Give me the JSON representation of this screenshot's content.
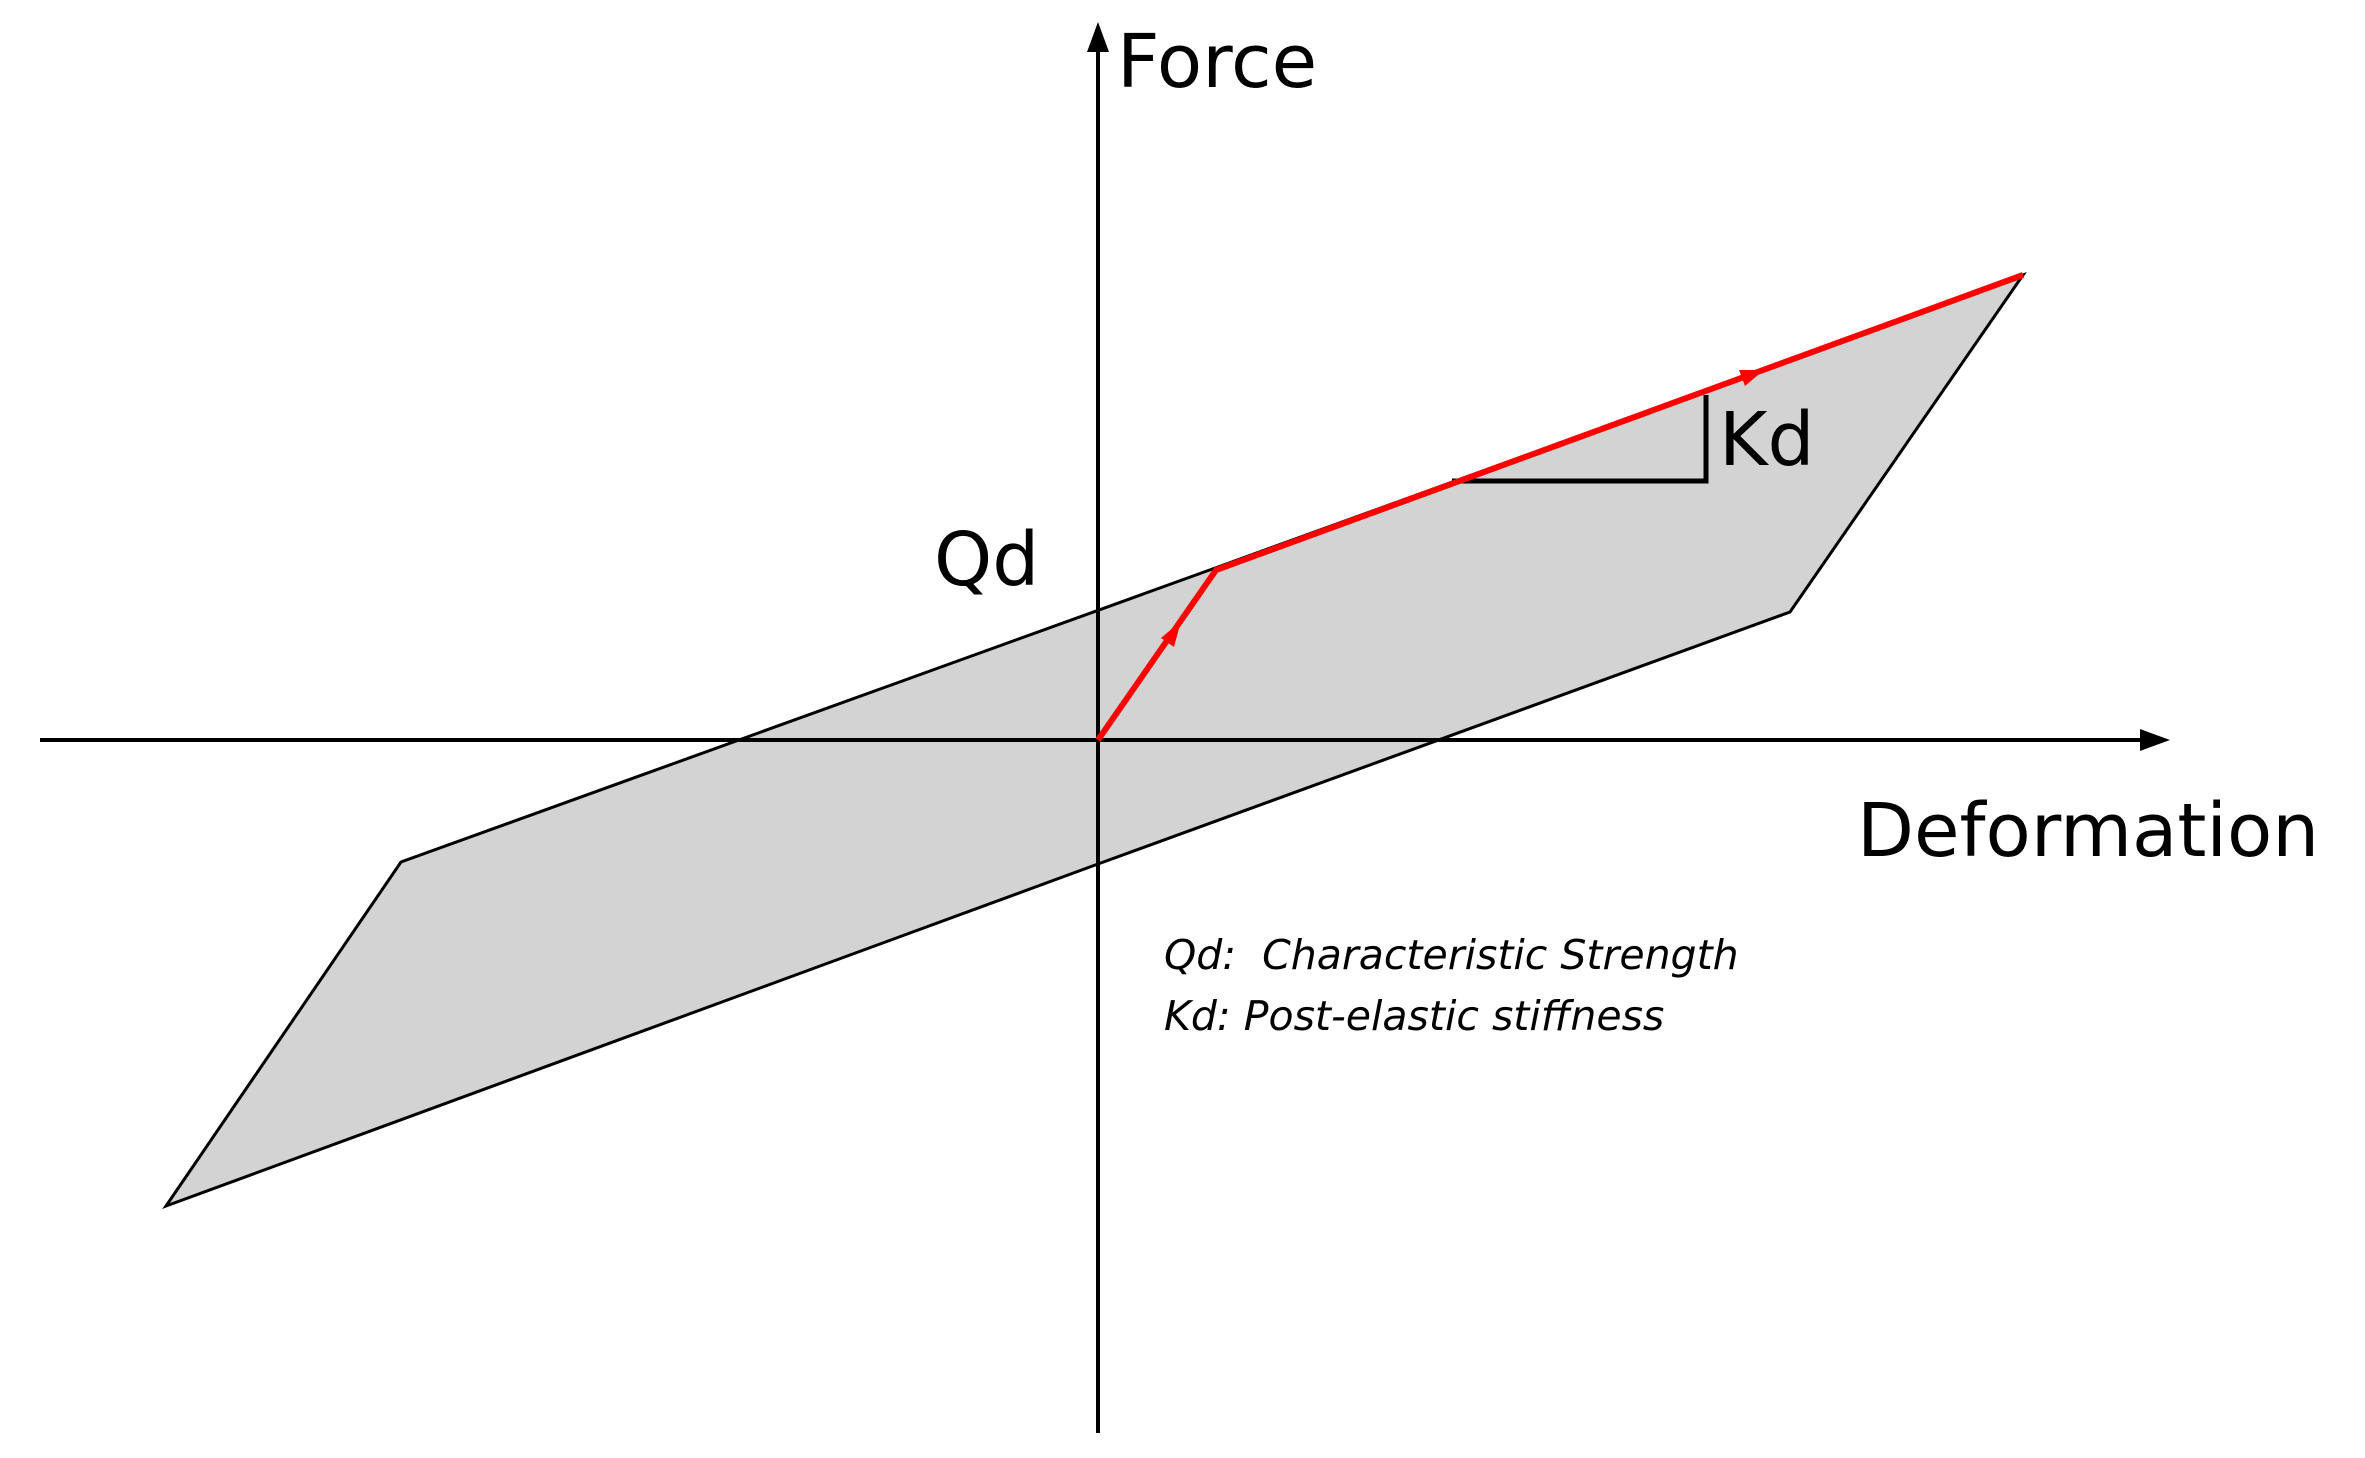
{
  "diagram": {
    "axes": {
      "y_label": "Force",
      "x_label": "Deformation"
    },
    "labels": {
      "qd": "Qd",
      "kd": "Kd"
    },
    "legend": {
      "line1": "Qd:  Characteristic Strength",
      "line2": "Kd: Post-elastic stiffness"
    },
    "colors": {
      "loop_fill": "#d4d3d3",
      "loop_stroke": "#000000",
      "loading_path": "#ff0000",
      "axis": "#000000"
    }
  }
}
